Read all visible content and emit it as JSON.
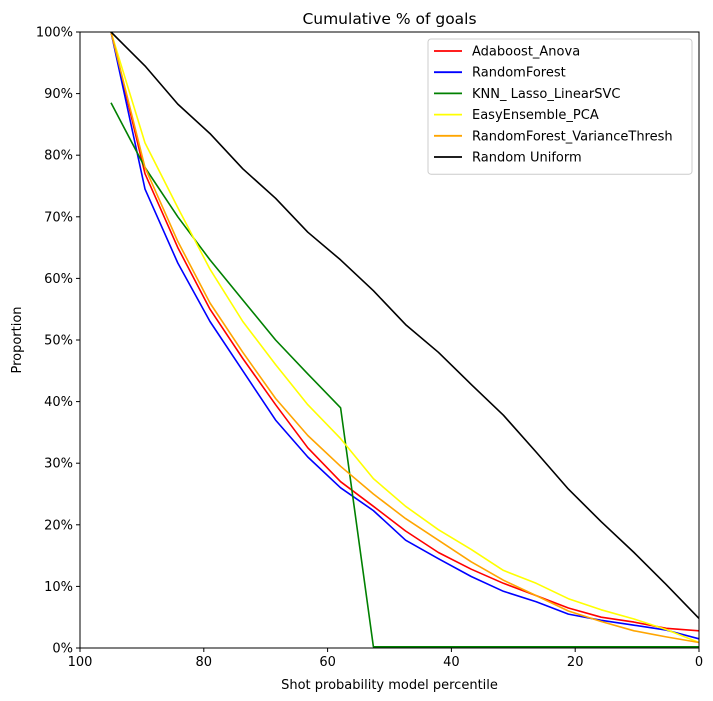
{
  "chart_data": {
    "type": "line",
    "title": "Cumulative % of goals",
    "xlabel": "Shot probability model percentile",
    "ylabel": "Proportion",
    "xlim": [
      100,
      0
    ],
    "ylim": [
      0,
      100
    ],
    "x_ticks": [
      100,
      80,
      60,
      40,
      20,
      0
    ],
    "x_tick_labels": [
      "100",
      "80",
      "60",
      "40",
      "20",
      "0"
    ],
    "y_ticks": [
      0,
      10,
      20,
      30,
      40,
      50,
      60,
      70,
      80,
      90,
      100
    ],
    "y_tick_labels": [
      "0%",
      "10%",
      "20%",
      "30%",
      "40%",
      "50%",
      "60%",
      "70%",
      "80%",
      "90%",
      "100%"
    ],
    "grid": false,
    "legend_position": "top-right",
    "series": [
      {
        "name": "Adaboost_Anova",
        "color": "#ff0000",
        "x": [
          95,
          89.5,
          84.2,
          79,
          73.7,
          68.4,
          63.2,
          57.9,
          52.6,
          47.4,
          42.1,
          36.8,
          31.6,
          26.3,
          21.1,
          15.8,
          10.5,
          5.3,
          0
        ],
        "y": [
          100,
          77,
          65,
          55,
          47,
          39.5,
          32.5,
          27,
          23,
          19,
          15.5,
          12.8,
          10.5,
          8.5,
          6.5,
          5,
          4.2,
          3.2,
          2.8
        ]
      },
      {
        "name": "RandomForest",
        "color": "#0000ff",
        "x": [
          95,
          89.5,
          84.2,
          79,
          73.7,
          68.4,
          63.2,
          57.9,
          52.6,
          47.4,
          42.1,
          36.8,
          31.6,
          26.3,
          21.1,
          15.8,
          10.5,
          5.3,
          0
        ],
        "y": [
          100,
          74.5,
          62.5,
          53,
          45,
          37,
          31,
          26,
          22.3,
          17.5,
          14.5,
          11.6,
          9.2,
          7.5,
          5.5,
          4.5,
          3.7,
          2.9,
          1.5
        ]
      },
      {
        "name": "KNN_ Lasso_LinearSVC",
        "color": "#008000",
        "x": [
          95,
          89.5,
          84.2,
          79,
          73.7,
          68.4,
          63.2,
          57.9,
          52.6,
          47.4,
          42.1,
          36.8,
          31.6,
          26.3,
          21.1,
          15.8,
          10.5,
          5.3,
          0
        ],
        "y": [
          88.5,
          78,
          70,
          63,
          56.5,
          50,
          44.5,
          39,
          0.2,
          0.2,
          0.2,
          0.2,
          0.2,
          0.2,
          0.2,
          0.2,
          0.2,
          0.2,
          0.2
        ]
      },
      {
        "name": "EasyEnsemble_PCA",
        "color": "#ffff00",
        "x": [
          95,
          89.5,
          84.2,
          79,
          73.7,
          68.4,
          63.2,
          57.9,
          52.6,
          47.4,
          42.1,
          36.8,
          31.6,
          26.3,
          21.1,
          15.8,
          10.5,
          5.3,
          0
        ],
        "y": [
          100,
          82,
          71.5,
          61.5,
          53,
          46,
          39.5,
          34,
          27.5,
          23,
          19.2,
          16,
          12.6,
          10.5,
          8,
          6.2,
          4.7,
          3,
          0.9
        ]
      },
      {
        "name": "RandomForest_VarianceThresh",
        "color": "#ffa500",
        "x": [
          95,
          89.5,
          84.2,
          79,
          73.7,
          68.4,
          63.2,
          57.9,
          52.6,
          47.4,
          42.1,
          36.8,
          31.6,
          26.3,
          21.1,
          15.8,
          10.5,
          5.3,
          0
        ],
        "y": [
          100,
          78,
          66,
          56,
          48,
          40.5,
          34.5,
          29.5,
          25,
          21,
          17.5,
          14,
          11,
          8.5,
          6,
          4.3,
          2.8,
          1.8,
          0.9
        ]
      },
      {
        "name": "Random Uniform",
        "color": "#000000",
        "x": [
          95,
          89.5,
          84.2,
          79,
          73.7,
          68.4,
          63.2,
          57.9,
          52.6,
          47.4,
          42.1,
          36.8,
          31.6,
          26.3,
          21.1,
          15.8,
          10.5,
          5.3,
          0
        ],
        "y": [
          100,
          94.5,
          88.3,
          83.5,
          77.8,
          73,
          67.5,
          63,
          58,
          52.5,
          48,
          42.8,
          37.8,
          31.8,
          25.8,
          20.5,
          15.5,
          10.3,
          4.8
        ]
      }
    ]
  }
}
